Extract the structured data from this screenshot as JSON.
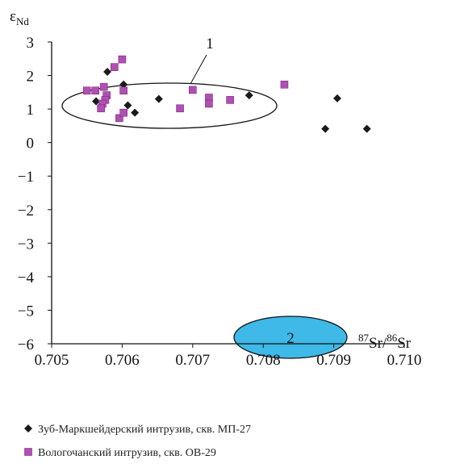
{
  "chart_data": {
    "type": "scatter",
    "y_label": "ε",
    "y_label_sub": "Nd",
    "x_label_sup1": "87",
    "x_label_part1": "Sr/",
    "x_label_sup2": "86",
    "x_label_part2": "Sr",
    "annotations": [
      "1",
      "2"
    ],
    "xlim": [
      0.705,
      0.71
    ],
    "ylim": [
      -6,
      3
    ],
    "xticks": [
      0.705,
      0.706,
      0.707,
      0.708,
      0.709,
      {
        "value": 0.71,
        "label": "0.710"
      }
    ],
    "yticks": [
      {
        "value": -6,
        "label": "−6"
      },
      {
        "value": -5,
        "label": "−5"
      },
      {
        "value": -4,
        "label": "−4"
      },
      {
        "value": -3,
        "label": "−3"
      },
      {
        "value": -2,
        "label": "−2"
      },
      {
        "value": -1,
        "label": "−1"
      },
      0,
      1,
      2,
      3
    ],
    "series": [
      {
        "name": "Зуб-Маркшейдерский интрузив, скв. МП-27",
        "color": "#1a1a1a",
        "marker": "diamond",
        "x": [
          0.70579,
          0.70563,
          0.70602,
          0.70608,
          0.70618,
          0.70652,
          0.7078,
          0.70905,
          0.70888,
          0.70947
        ],
        "values": [
          2.11,
          1.23,
          1.73,
          1.11,
          0.89,
          1.3,
          1.41,
          1.32,
          0.41,
          0.41
        ]
      },
      {
        "name": "Вологочанский интрузив, скв. ОВ-29",
        "color": "#b14fb3",
        "marker": "square",
        "x": [
          0.7055,
          0.70562,
          0.70574,
          0.70589,
          0.706,
          0.70578,
          0.70576,
          0.70572,
          0.7057,
          0.70596,
          0.70602,
          0.70602,
          0.70682,
          0.707,
          0.70723,
          0.70723,
          0.70753,
          0.7083
        ],
        "values": [
          1.55,
          1.55,
          1.66,
          2.25,
          2.48,
          1.41,
          1.27,
          1.16,
          1.02,
          0.73,
          0.89,
          1.55,
          1.02,
          1.57,
          1.34,
          1.16,
          1.27,
          1.73
        ]
      }
    ]
  }
}
